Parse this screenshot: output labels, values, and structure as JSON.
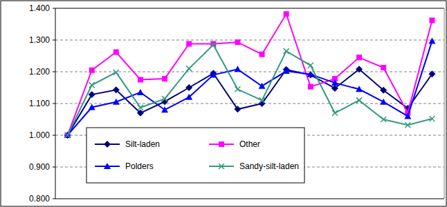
{
  "chart_data": {
    "type": "line",
    "categories": [
      null,
      null,
      null,
      null,
      null,
      null,
      null,
      null,
      null,
      null,
      null,
      null,
      null,
      null,
      null,
      null
    ],
    "series": [
      {
        "name": "Silt-laden",
        "color": "#000080",
        "marker": "diamond",
        "values": [
          1.0,
          1.128,
          1.143,
          1.07,
          1.106,
          1.15,
          1.195,
          1.082,
          1.1,
          1.207,
          1.19,
          1.148,
          1.208,
          1.142,
          1.085,
          1.193
        ]
      },
      {
        "name": "Other",
        "color": "#ff00ff",
        "marker": "square",
        "values": [
          1.0,
          1.205,
          1.262,
          1.175,
          1.178,
          1.288,
          1.288,
          1.293,
          1.255,
          1.382,
          1.153,
          1.178,
          1.245,
          1.213,
          1.07,
          1.362
        ]
      },
      {
        "name": "Polders",
        "color": "#0000ff",
        "marker": "triangle",
        "values": [
          1.0,
          1.088,
          1.105,
          1.135,
          1.08,
          1.12,
          1.19,
          1.208,
          1.155,
          1.202,
          1.192,
          1.165,
          1.145,
          1.105,
          1.06,
          1.297
        ]
      },
      {
        "name": "Sandy-silt-laden",
        "color": "#339980",
        "marker": "x",
        "values": [
          1.0,
          1.158,
          1.198,
          1.087,
          1.115,
          1.21,
          1.285,
          1.145,
          1.11,
          1.265,
          1.22,
          1.07,
          1.11,
          1.05,
          1.032,
          1.052
        ]
      }
    ],
    "ylim": [
      0.8,
      1.4
    ],
    "yticks": [
      {
        "value": 0.8,
        "label": "0.800"
      },
      {
        "value": 0.9,
        "label": "0.900"
      },
      {
        "value": 1.0,
        "label": "1.000"
      },
      {
        "value": 1.1,
        "label": "1.100"
      },
      {
        "value": 1.2,
        "label": "1.200"
      },
      {
        "value": 1.3,
        "label": "1.300"
      },
      {
        "value": 1.4,
        "label": "1.400"
      }
    ],
    "grid": true,
    "legend": "lower-left",
    "tick_labels": "y"
  }
}
